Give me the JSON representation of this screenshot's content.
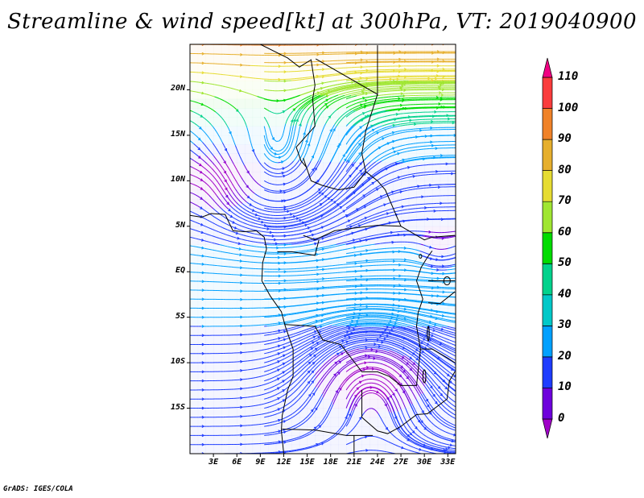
{
  "title": "Streamline & wind speed[kt] at 300hPa, VT: 2019040900",
  "map": {
    "lat_labels": [
      "20N",
      "15N",
      "10N",
      "5N",
      "EQ",
      "5S",
      "10S",
      "15S"
    ],
    "lon_labels": [
      "3E",
      "6E",
      "9E",
      "12E",
      "15E",
      "18E",
      "21E",
      "24E",
      "27E",
      "30E",
      "33E"
    ],
    "lat_values": [
      20,
      15,
      10,
      5,
      0,
      -5,
      -10,
      -15
    ],
    "lon_values": [
      3,
      6,
      9,
      12,
      15,
      18,
      21,
      24,
      27,
      30,
      33
    ],
    "lat_range": [
      -20,
      25
    ],
    "lon_range": [
      0,
      34
    ]
  },
  "colorbar": {
    "labels": [
      "110",
      "100",
      "90",
      "80",
      "70",
      "60",
      "50",
      "40",
      "30",
      "20",
      "10",
      "0"
    ],
    "levels": [
      0,
      10,
      20,
      30,
      40,
      50,
      60,
      70,
      80,
      90,
      100,
      110
    ],
    "colors": [
      "#a000c8",
      "#6e00dc",
      "#1e3cff",
      "#00a0ff",
      "#00c8c8",
      "#00d28c",
      "#00dc00",
      "#a0e632",
      "#e6dc32",
      "#e6af2d",
      "#f08228",
      "#fa3c3c",
      "#f00082"
    ]
  },
  "footer": "GrADS: IGES/COLA"
}
